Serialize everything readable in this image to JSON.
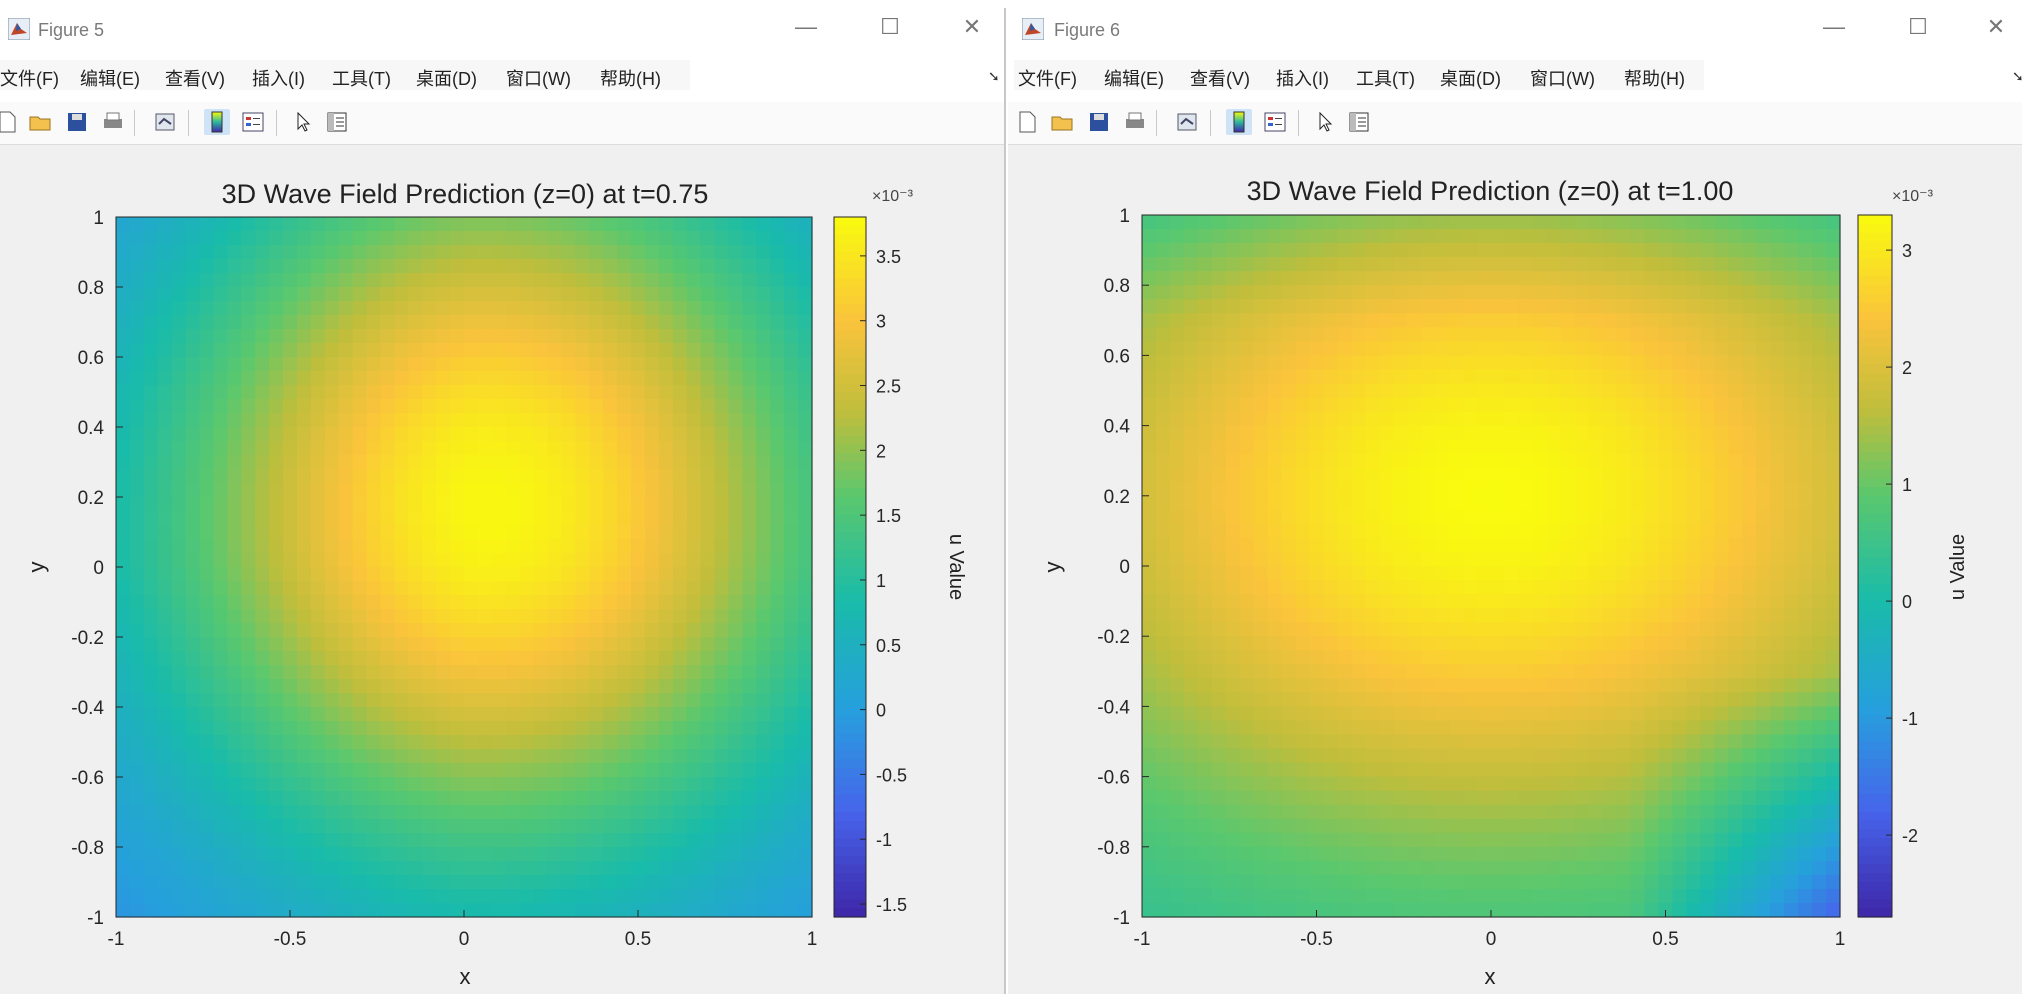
{
  "windows": [
    {
      "title": "Figure 5",
      "menu": [
        "文件(F)",
        "编辑(E)",
        "查看(V)",
        "插入(I)",
        "工具(T)",
        "桌面(D)",
        "窗口(W)",
        "帮助(H)"
      ],
      "chart_data": {
        "type": "heatmap",
        "title": "3D Wave Field Prediction (z=0) at t=0.75",
        "xlabel": "x",
        "ylabel": "y",
        "xlim": [
          -1,
          1
        ],
        "ylim": [
          -1,
          1
        ],
        "xticks": [
          "-1",
          "-0.5",
          "0",
          "0.5",
          "1"
        ],
        "yticks": [
          "1",
          "0.8",
          "0.6",
          "0.4",
          "0.2",
          "0",
          "-0.2",
          "-0.4",
          "-0.6",
          "-0.8",
          "-1"
        ],
        "colorbar": {
          "label": "u Value",
          "exponent": "×10⁻³",
          "ticks": [
            "3.5",
            "3",
            "2.5",
            "2",
            "1.5",
            "1",
            "0.5",
            "0",
            "-0.5",
            "-1",
            "-1.5"
          ],
          "range": [
            -1.6,
            3.8
          ],
          "colormap": "parula"
        },
        "peak": {
          "x": 0.1,
          "y": 0.2
        },
        "colors": {
          "low": "#3e26a8",
          "mid": "#2db7a0",
          "high": "#f9fb0e"
        }
      }
    },
    {
      "title": "Figure 6",
      "menu": [
        "文件(F)",
        "编辑(E)",
        "查看(V)",
        "插入(I)",
        "工具(T)",
        "桌面(D)",
        "窗口(W)",
        "帮助(H)"
      ],
      "chart_data": {
        "type": "heatmap",
        "title": "3D Wave Field Prediction (z=0) at t=1.00",
        "xlabel": "x",
        "ylabel": "y",
        "xlim": [
          -1,
          1
        ],
        "ylim": [
          -1,
          1
        ],
        "xticks": [
          "-1",
          "-0.5",
          "0",
          "0.5",
          "1"
        ],
        "yticks": [
          "1",
          "0.8",
          "0.6",
          "0.4",
          "0.2",
          "0",
          "-0.2",
          "-0.4",
          "-0.6",
          "-0.8",
          "-1"
        ],
        "colorbar": {
          "label": "u Value",
          "exponent": "×10⁻³",
          "ticks": [
            "3",
            "2",
            "1",
            "0",
            "-1",
            "-2"
          ],
          "range": [
            -2.7,
            3.3
          ],
          "colormap": "parula"
        },
        "peak": {
          "x": 0.0,
          "y": 0.2
        },
        "colors": {
          "low": "#3e26a8",
          "mid": "#2db7a0",
          "high": "#f9fb0e"
        }
      }
    }
  ]
}
